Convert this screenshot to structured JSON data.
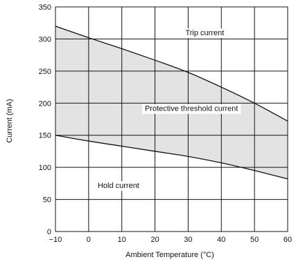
{
  "chart_data": {
    "type": "area",
    "title": "",
    "xlabel": "Ambient Temperature (°C)",
    "ylabel": "Current (mA)",
    "xlim": [
      -10,
      60
    ],
    "ylim": [
      0,
      350
    ],
    "x_ticks": [
      -10,
      0,
      10,
      20,
      30,
      40,
      50,
      60
    ],
    "y_ticks": [
      0,
      50,
      100,
      150,
      200,
      250,
      300,
      350
    ],
    "x_tick_labels": [
      "−10",
      "0",
      "10",
      "20",
      "30",
      "40",
      "50",
      "60"
    ],
    "y_tick_labels": [
      "0",
      "50",
      "100",
      "150",
      "200",
      "250",
      "300",
      "350"
    ],
    "grid": true,
    "shaded_region": {
      "between": [
        "Trip current",
        "Hold current"
      ],
      "color": "#e3e3e3"
    },
    "line_color": "#111111",
    "series": [
      {
        "name": "Trip current",
        "x": [
          -10,
          0,
          10,
          20,
          30,
          40,
          50,
          60
        ],
        "y": [
          320,
          302,
          285,
          267,
          248,
          225,
          200,
          172
        ]
      },
      {
        "name": "Hold current",
        "x": [
          -10,
          0,
          10,
          20,
          30,
          40,
          50,
          60
        ],
        "y": [
          150,
          141,
          133,
          125,
          117,
          107,
          95,
          82
        ]
      }
    ],
    "annotations": [
      {
        "text": "Trip current",
        "x": 35,
        "y": 310
      },
      {
        "text": "Protective threshold current",
        "x": 31,
        "y": 192
      },
      {
        "text": "Hold current",
        "x": 9,
        "y": 72
      }
    ]
  }
}
